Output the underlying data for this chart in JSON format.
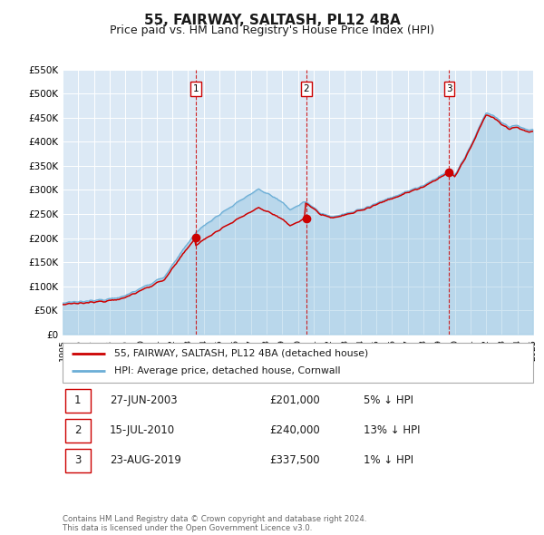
{
  "title": "55, FAIRWAY, SALTASH, PL12 4BA",
  "subtitle": "Price paid vs. HM Land Registry's House Price Index (HPI)",
  "title_fontsize": 11,
  "subtitle_fontsize": 9,
  "bg_color": "#ffffff",
  "plot_bg_color": "#dce9f5",
  "grid_color": "#ffffff",
  "ylim": [
    0,
    550000
  ],
  "yticks": [
    0,
    50000,
    100000,
    150000,
    200000,
    250000,
    300000,
    350000,
    400000,
    450000,
    500000,
    550000
  ],
  "ytick_labels": [
    "£0",
    "£50K",
    "£100K",
    "£150K",
    "£200K",
    "£250K",
    "£300K",
    "£350K",
    "£400K",
    "£450K",
    "£500K",
    "£550K"
  ],
  "hpi_color": "#6baed6",
  "price_color": "#cc0000",
  "sale_marker_color": "#cc0000",
  "vline_color": "#cc0000",
  "sales": [
    {
      "date_num": 2003.49,
      "price": 201000,
      "label": "1"
    },
    {
      "date_num": 2010.54,
      "price": 240000,
      "label": "2"
    },
    {
      "date_num": 2019.65,
      "price": 337500,
      "label": "3"
    }
  ],
  "legend_entries": [
    "55, FAIRWAY, SALTASH, PL12 4BA (detached house)",
    "HPI: Average price, detached house, Cornwall"
  ],
  "table_rows": [
    {
      "label": "1",
      "date": "27-JUN-2003",
      "price": "£201,000",
      "hpi": "5% ↓ HPI"
    },
    {
      "label": "2",
      "date": "15-JUL-2010",
      "price": "£240,000",
      "hpi": "13% ↓ HPI"
    },
    {
      "label": "3",
      "date": "23-AUG-2019",
      "price": "£337,500",
      "hpi": "1% ↓ HPI"
    }
  ],
  "footnote": "Contains HM Land Registry data © Crown copyright and database right 2024.\nThis data is licensed under the Open Government Licence v3.0.",
  "xmin": 1995,
  "xmax": 2025
}
